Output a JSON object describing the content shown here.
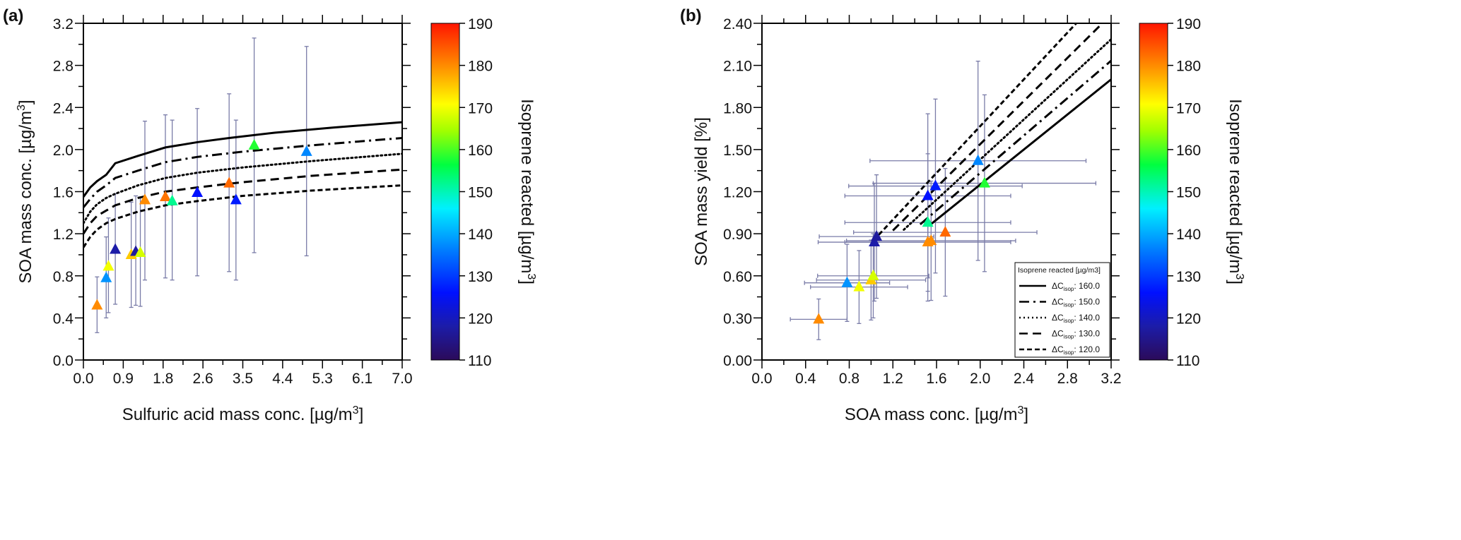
{
  "chart_data": [
    {
      "type": "scatter",
      "panel_label": "(a)",
      "xlabel": "Sulfuric acid mass conc. [µg/m3]",
      "ylabel": "SOA mass conc. [µg/m3]",
      "xlim": [
        0,
        7.0
      ],
      "ylim": [
        0,
        3.2
      ],
      "xticks": [
        "0.0",
        "0.9",
        "1.8",
        "2.6",
        "3.5",
        "4.4",
        "5.3",
        "6.1",
        "7.0"
      ],
      "yticks": [
        "0.0",
        "0.4",
        "0.8",
        "1.2",
        "1.6",
        "2.0",
        "2.4",
        "2.8",
        "3.2"
      ],
      "colorbar": {
        "label": "Isoprene reacted [µg/m3]",
        "range": [
          110,
          190
        ],
        "ticks": [
          "110",
          "120",
          "130",
          "140",
          "150",
          "160",
          "170",
          "180",
          "190"
        ]
      },
      "points": [
        {
          "x": 0.3,
          "y": 0.52,
          "ylo": 0.26,
          "yhi": 0.79,
          "c": 180
        },
        {
          "x": 0.5,
          "y": 0.78,
          "ylo": 0.4,
          "yhi": 1.17,
          "c": 138
        },
        {
          "x": 0.55,
          "y": 0.89,
          "ylo": 0.45,
          "yhi": 1.35,
          "c": 170
        },
        {
          "x": 0.7,
          "y": 1.05,
          "ylo": 0.53,
          "yhi": 1.58,
          "c": 118
        },
        {
          "x": 1.05,
          "y": 1.0,
          "ylo": 0.5,
          "yhi": 1.5,
          "c": 175
        },
        {
          "x": 1.15,
          "y": 1.03,
          "ylo": 0.52,
          "yhi": 1.56,
          "c": 117
        },
        {
          "x": 1.25,
          "y": 1.02,
          "ylo": 0.51,
          "yhi": 1.55,
          "c": 168
        },
        {
          "x": 1.35,
          "y": 1.52,
          "ylo": 0.76,
          "yhi": 2.27,
          "c": 180
        },
        {
          "x": 1.8,
          "y": 1.55,
          "ylo": 0.78,
          "yhi": 2.33,
          "c": 182
        },
        {
          "x": 1.95,
          "y": 1.51,
          "ylo": 0.76,
          "yhi": 2.28,
          "c": 152
        },
        {
          "x": 2.5,
          "y": 1.59,
          "ylo": 0.8,
          "yhi": 2.39,
          "c": 126
        },
        {
          "x": 3.2,
          "y": 1.68,
          "ylo": 0.84,
          "yhi": 2.53,
          "c": 183
        },
        {
          "x": 3.35,
          "y": 1.52,
          "ylo": 0.76,
          "yhi": 2.28,
          "c": 127
        },
        {
          "x": 3.75,
          "y": 2.04,
          "ylo": 1.02,
          "yhi": 3.06,
          "c": 158
        },
        {
          "x": 4.9,
          "y": 1.98,
          "ylo": 0.99,
          "yhi": 2.98,
          "c": 137
        }
      ],
      "curves": [
        {
          "dC": 160,
          "style": "solid",
          "x": [
            0,
            0.15,
            0.3,
            0.5,
            0.7,
            1.2,
            1.8,
            2.5,
            3.2,
            4.2,
            5.5,
            7.0
          ],
          "y": [
            1.55,
            1.64,
            1.7,
            1.76,
            1.87,
            1.94,
            2.02,
            2.07,
            2.11,
            2.16,
            2.21,
            2.26
          ]
        },
        {
          "dC": 150,
          "style": "dashdot",
          "x": [
            0,
            0.15,
            0.3,
            0.5,
            0.7,
            1.2,
            1.8,
            2.5,
            3.5,
            5.0,
            7.0
          ],
          "y": [
            1.45,
            1.53,
            1.6,
            1.66,
            1.73,
            1.8,
            1.88,
            1.93,
            1.98,
            2.04,
            2.11
          ]
        },
        {
          "dC": 140,
          "style": "dot",
          "x": [
            0,
            0.15,
            0.3,
            0.5,
            0.7,
            1.2,
            1.8,
            2.5,
            3.5,
            5.0,
            7.0
          ],
          "y": [
            1.3,
            1.41,
            1.48,
            1.54,
            1.58,
            1.66,
            1.73,
            1.78,
            1.83,
            1.89,
            1.96
          ]
        },
        {
          "dC": 130,
          "style": "dash",
          "x": [
            0,
            0.15,
            0.3,
            0.5,
            0.7,
            1.2,
            1.8,
            2.5,
            3.5,
            5.0,
            7.0
          ],
          "y": [
            1.2,
            1.3,
            1.37,
            1.42,
            1.47,
            1.54,
            1.6,
            1.64,
            1.69,
            1.75,
            1.81
          ]
        },
        {
          "dC": 120,
          "style": "shortdash",
          "x": [
            0,
            0.15,
            0.3,
            0.5,
            0.7,
            1.2,
            1.8,
            2.5,
            3.5,
            5.0,
            7.0
          ],
          "y": [
            1.07,
            1.17,
            1.24,
            1.3,
            1.34,
            1.41,
            1.47,
            1.51,
            1.56,
            1.61,
            1.66
          ]
        }
      ]
    },
    {
      "type": "scatter",
      "panel_label": "(b)",
      "xlabel": "SOA mass conc. [µg/m3]",
      "ylabel": "SOA mass yield [%]",
      "xlim": [
        0,
        3.2
      ],
      "ylim": [
        0,
        2.4
      ],
      "xticks": [
        "0.0",
        "0.4",
        "0.8",
        "1.2",
        "1.6",
        "2.0",
        "2.4",
        "2.8",
        "3.2"
      ],
      "yticks": [
        "0.00",
        "0.30",
        "0.60",
        "0.90",
        "1.20",
        "1.50",
        "1.80",
        "2.10",
        "2.40"
      ],
      "colorbar": {
        "label": "Isoprene reacted [µg/m3]",
        "range": [
          110,
          190
        ],
        "ticks": [
          "110",
          "120",
          "130",
          "140",
          "150",
          "160",
          "170",
          "180",
          "190"
        ]
      },
      "points": [
        {
          "x": 0.52,
          "y": 0.29,
          "c": 180
        },
        {
          "x": 0.78,
          "y": 0.55,
          "c": 138
        },
        {
          "x": 0.89,
          "y": 0.52,
          "c": 170
        },
        {
          "x": 1.0,
          "y": 0.57,
          "c": 175
        },
        {
          "x": 1.02,
          "y": 0.6,
          "c": 168
        },
        {
          "x": 1.03,
          "y": 0.84,
          "c": 118
        },
        {
          "x": 1.05,
          "y": 0.88,
          "c": 117
        },
        {
          "x": 1.52,
          "y": 0.84,
          "c": 180
        },
        {
          "x": 1.55,
          "y": 0.85,
          "c": 180
        },
        {
          "x": 1.52,
          "y": 0.98,
          "c": 152
        },
        {
          "x": 1.52,
          "y": 1.17,
          "c": 126
        },
        {
          "x": 1.59,
          "y": 1.24,
          "c": 127
        },
        {
          "x": 1.68,
          "y": 0.91,
          "c": 183
        },
        {
          "x": 1.98,
          "y": 1.42,
          "c": 137
        },
        {
          "x": 2.04,
          "y": 1.26,
          "c": 158
        }
      ],
      "relative_error": 0.5,
      "lines": [
        {
          "dC": 160,
          "style": "solid",
          "x_start": 1.55
        },
        {
          "dC": 150,
          "style": "dashdot",
          "x_start": 1.45
        },
        {
          "dC": 140,
          "style": "dot",
          "x_start": 1.3
        },
        {
          "dC": 130,
          "style": "dash",
          "x_start": 1.2
        },
        {
          "dC": 120,
          "style": "shortdash",
          "x_start": 1.07
        }
      ],
      "legend": {
        "title": "Isoprene reacted [µg/m3]",
        "placement": "bottom-right",
        "entries": [
          {
            "prefix": "ΔC",
            "sub": "isop",
            "value": ": 160.0",
            "style": "solid"
          },
          {
            "prefix": "ΔC",
            "sub": "isop",
            "value": ": 150.0",
            "style": "dashdot"
          },
          {
            "prefix": "ΔC",
            "sub": "isop",
            "value": ": 140.0",
            "style": "dot"
          },
          {
            "prefix": "ΔC",
            "sub": "isop",
            "value": ": 130.0",
            "style": "dash"
          },
          {
            "prefix": "ΔC",
            "sub": "isop",
            "value": ": 120.0",
            "style": "shortdash"
          }
        ]
      }
    }
  ],
  "colors": {
    "errorbar": "#7a7ca8",
    "axis": "#000000"
  }
}
